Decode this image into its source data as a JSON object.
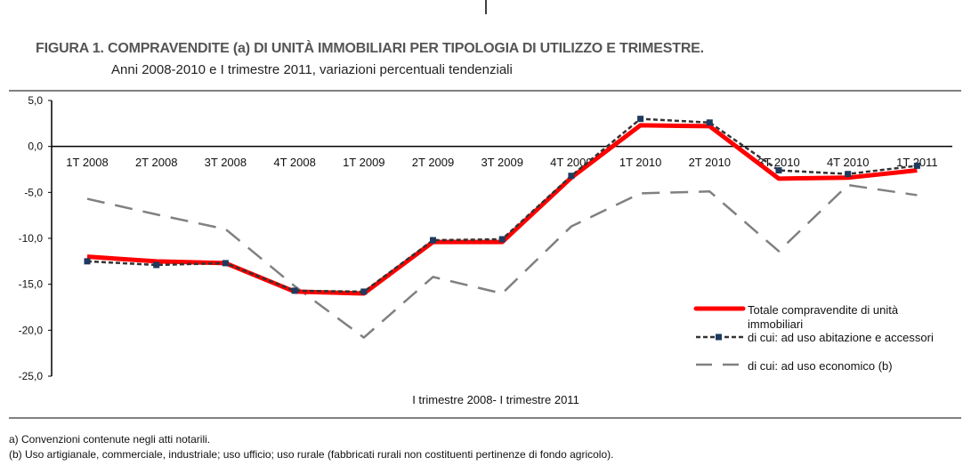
{
  "figure": {
    "title": "FIGURA 1. COMPRAVENDITE (a) DI UNITÀ IMMOBILIARI PER TIPOLOGIA DI UTILIZZO E TRIMESTRE.",
    "subtitle": "Anni 2008-2010 e I trimestre 2011, variazioni percentuali tendenziali",
    "footnotes": [
      "a) Convenzioni contenute negli atti notarili.",
      "(b) Uso artigianale, commerciale, industriale; uso ufficio; uso rurale (fabbricati rurali non costituenti pertinenze di fondo agricolo)."
    ]
  },
  "chart_data": {
    "type": "line",
    "title": "",
    "xlabel": "I trimestre 2008- I trimestre 2011",
    "ylabel": "",
    "ylim": [
      -25,
      5
    ],
    "yticks": [
      "5,0",
      "0,0",
      "-5,0",
      "-10,0",
      "-15,0",
      "-20,0",
      "-25,0"
    ],
    "ytick_values": [
      5,
      0,
      -5,
      -10,
      -15,
      -20,
      -25
    ],
    "grid": false,
    "legend_position": "bottom-right",
    "categories": [
      "1T 2008",
      "2T 2008",
      "3T 2008",
      "4T 2008",
      "1T 2009",
      "2T 2009",
      "3T 2009",
      "4T 2009",
      "1T 2010",
      "2T 2010",
      "3T 2010",
      "4T 2010",
      "1T 2011"
    ],
    "series": [
      {
        "name": "Totale compravendite di unità immobiliari",
        "color": "#ff0000",
        "style": "solid-thick",
        "values": [
          -12.0,
          -12.5,
          -12.7,
          -15.8,
          -16.0,
          -10.4,
          -10.4,
          -3.4,
          2.3,
          2.2,
          -3.5,
          -3.4,
          -2.6
        ]
      },
      {
        "name": "di cui: ad uso abitazione e accessori",
        "color": "#333333",
        "marker_color": "#1f3a5f",
        "style": "dotted-square-markers",
        "values": [
          -12.5,
          -12.9,
          -12.7,
          -15.7,
          -15.8,
          -10.2,
          -10.1,
          -3.2,
          3.0,
          2.6,
          -2.6,
          -3.0,
          -2.1
        ]
      },
      {
        "name": "di cui: ad uso economico (b)",
        "color": "#808080",
        "style": "long-dash",
        "values": [
          -5.7,
          -7.4,
          -9.0,
          -15.2,
          -20.8,
          -14.2,
          -16.0,
          -8.7,
          -5.1,
          -4.9,
          -11.4,
          -4.2,
          -5.3
        ]
      }
    ]
  }
}
